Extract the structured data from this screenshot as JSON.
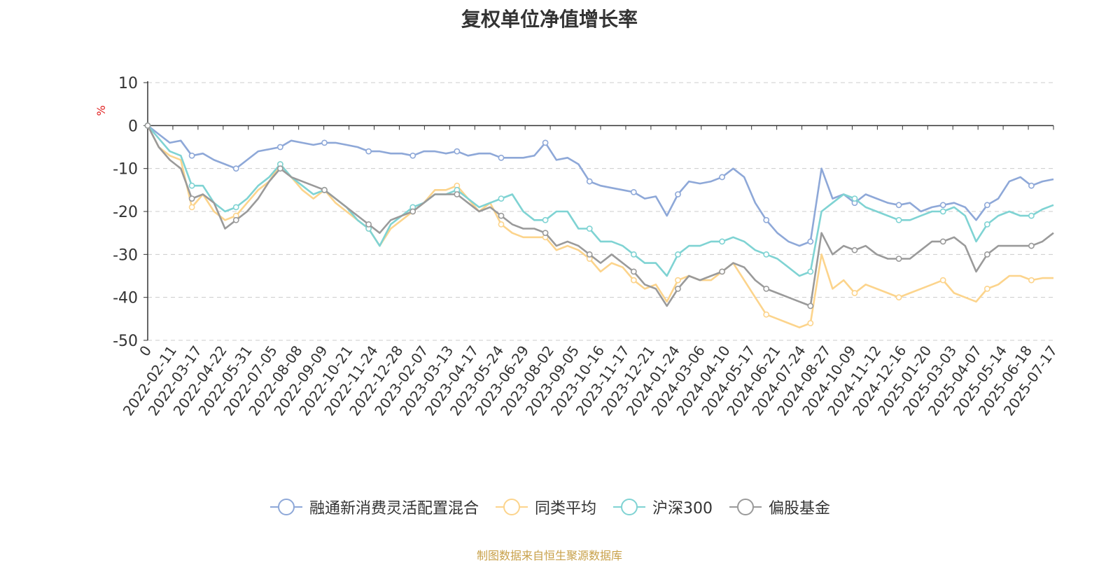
{
  "title": "复权单位净值增长率",
  "source_note": "制图数据来自恒生聚源数据库",
  "colors": {
    "fund": "#8ea8d8",
    "peer": "#fcd48c",
    "hs300": "#7fd3d3",
    "equity": "#9a9a9a",
    "axis": "#333333",
    "grid": "#cccccc",
    "unit": "#e02020"
  },
  "chart_data": {
    "type": "line",
    "title": "复权单位净值增长率",
    "ylabel": "%",
    "ylim": [
      -50,
      10
    ],
    "y_ticks": [
      "10",
      "0",
      "-10",
      "-20",
      "-30",
      "-40",
      "-50"
    ],
    "y_tick_values": [
      10,
      0,
      -10,
      -20,
      -30,
      -40,
      -50
    ],
    "x_tick_labels": [
      "0",
      "2022-02-11",
      "2022-03-17",
      "2022-04-22",
      "2022-05-31",
      "2022-07-05",
      "2022-08-08",
      "2022-09-09",
      "2022-10-21",
      "2022-11-24",
      "2022-12-28",
      "2023-02-07",
      "2023-03-13",
      "2023-04-17",
      "2023-05-24",
      "2023-06-29",
      "2023-08-02",
      "2023-09-05",
      "2023-10-16",
      "2023-11-17",
      "2023-12-21",
      "2024-01-24",
      "2024-03-06",
      "2024-04-10",
      "2024-05-17",
      "2024-06-21",
      "2024-07-24",
      "2024-08-27",
      "2024-10-09",
      "2024-11-12",
      "2024-12-16",
      "2025-01-20",
      "2025-03-03",
      "2025-04-07",
      "2025-05-14",
      "2025-06-18",
      "2025-07-17"
    ],
    "legend_position": "bottom",
    "grid": true,
    "series": [
      {
        "name": "融通新消费灵活配置混合",
        "color": "#8ea8d8",
        "values": [
          0,
          -2,
          -4,
          -3.5,
          -7,
          -6.5,
          -8,
          -9,
          -10,
          -8,
          -6,
          -5.5,
          -5,
          -3.5,
          -4,
          -4.5,
          -4,
          -4,
          -4.5,
          -5,
          -6,
          -6,
          -6.5,
          -6.5,
          -7,
          -6,
          -6,
          -6.5,
          -6,
          -7,
          -6.5,
          -6.5,
          -7.5,
          -7.5,
          -7.5,
          -7,
          -4,
          -8,
          -7.5,
          -9,
          -13,
          -14,
          -14.5,
          -15,
          -15.5,
          -17,
          -16.5,
          -21,
          -16,
          -13,
          -13.5,
          -13,
          -12,
          -10,
          -12,
          -18,
          -22,
          -25,
          -27,
          -28,
          -27,
          -10,
          -17,
          -16,
          -18,
          -16,
          -17,
          -18,
          -18.5,
          -18,
          -20,
          -19,
          -18.5,
          -18,
          -19,
          -22,
          -18.5,
          -17,
          -13,
          -12,
          -14,
          -13,
          -12.5
        ]
      },
      {
        "name": "同类平均",
        "color": "#fcd48c",
        "values": [
          0,
          -5,
          -7,
          -8,
          -19,
          -16,
          -20,
          -22,
          -21,
          -18,
          -15,
          -13,
          -9,
          -12,
          -15,
          -17,
          -15,
          -18,
          -20,
          -22,
          -24,
          -28,
          -24,
          -22,
          -20,
          -18,
          -15,
          -15,
          -14,
          -17,
          -20,
          -18,
          -23,
          -25,
          -26,
          -26,
          -26,
          -29,
          -28,
          -29,
          -31,
          -34,
          -32,
          -33,
          -36,
          -38,
          -37,
          -41,
          -36,
          -35,
          -36,
          -36,
          -34,
          -32,
          -36,
          -40,
          -44,
          -45,
          -46,
          -47,
          -46,
          -30,
          -38,
          -36,
          -39,
          -37,
          -38,
          -39,
          -40,
          -39,
          -38,
          -37,
          -36,
          -39,
          -40,
          -41,
          -38,
          -37,
          -35,
          -35,
          -36,
          -35.5,
          -35.5
        ]
      },
      {
        "name": "沪深300",
        "color": "#7fd3d3",
        "values": [
          0,
          -3,
          -6,
          -7,
          -14,
          -14,
          -18,
          -20,
          -19,
          -17,
          -14,
          -12,
          -9,
          -12,
          -14,
          -16,
          -15,
          -17,
          -19,
          -22,
          -24,
          -28,
          -23,
          -21,
          -19,
          -18,
          -16,
          -16,
          -15,
          -17,
          -19,
          -18,
          -17,
          -16,
          -20,
          -22,
          -22,
          -20,
          -20,
          -24,
          -24,
          -27,
          -27,
          -28,
          -30,
          -32,
          -32,
          -35,
          -30,
          -28,
          -28,
          -27,
          -27,
          -26,
          -27,
          -29,
          -30,
          -31,
          -33,
          -35,
          -34,
          -20,
          -18,
          -16,
          -17,
          -19,
          -20,
          -21,
          -22,
          -22,
          -21,
          -20,
          -20,
          -19,
          -21,
          -27,
          -23,
          -21,
          -20,
          -21,
          -21,
          -19.5,
          -18.5
        ]
      },
      {
        "name": "偏股基金",
        "color": "#9a9a9a",
        "values": [
          0,
          -5,
          -8,
          -10,
          -17,
          -16,
          -18,
          -24,
          -22,
          -20,
          -17,
          -13,
          -10,
          -12,
          -13,
          -14,
          -15,
          -17,
          -19,
          -21,
          -23,
          -25,
          -22,
          -21,
          -20,
          -18,
          -16,
          -16,
          -16,
          -18,
          -20,
          -19,
          -21,
          -23,
          -24,
          -24,
          -25,
          -28,
          -27,
          -28,
          -30,
          -32,
          -30,
          -32,
          -34,
          -37,
          -38,
          -42,
          -38,
          -35,
          -36,
          -35,
          -34,
          -32,
          -33,
          -36,
          -38,
          -39,
          -40,
          -41,
          -42,
          -25,
          -30,
          -28,
          -29,
          -28,
          -30,
          -31,
          -31,
          -31,
          -29,
          -27,
          -27,
          -26,
          -28,
          -34,
          -30,
          -28,
          -28,
          -28,
          -28,
          -27,
          -25
        ]
      }
    ]
  }
}
